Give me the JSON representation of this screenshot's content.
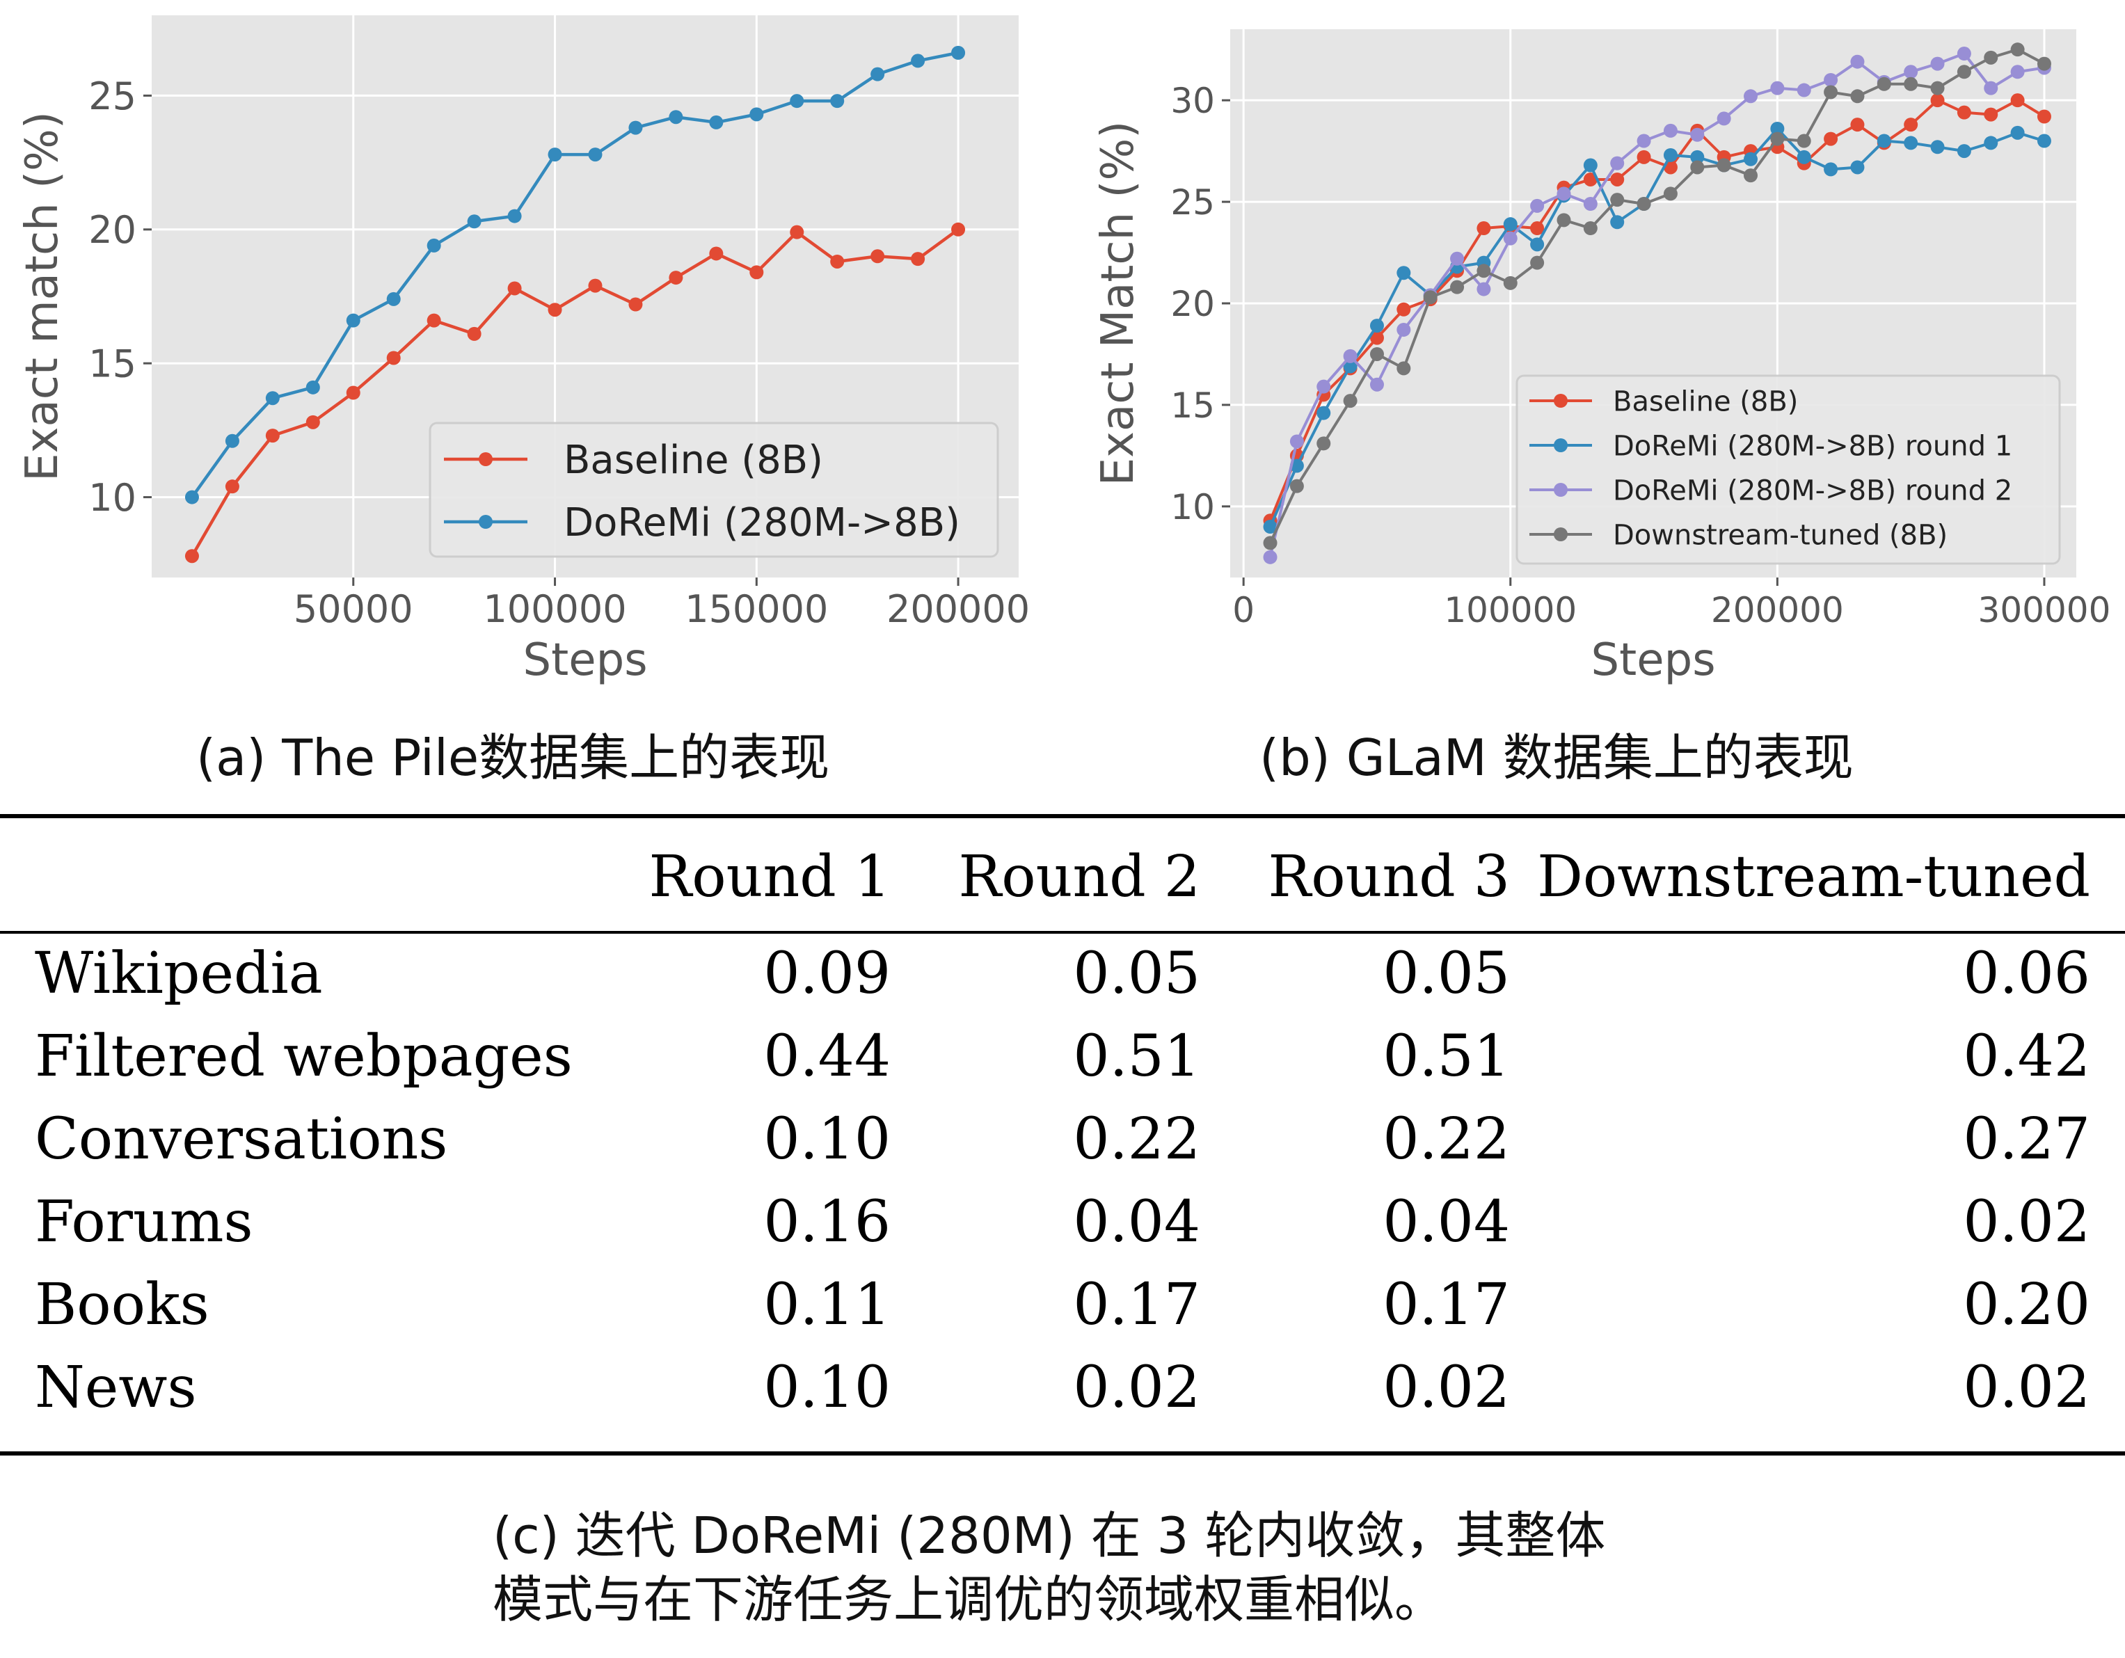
{
  "chart_data": [
    {
      "type": "line",
      "title": "",
      "xlabel": "Steps",
      "ylabel": "Exact match (%)",
      "xlim": [
        0,
        215000
      ],
      "ylim": [
        7,
        28
      ],
      "xticks": [
        50000,
        100000,
        150000,
        200000
      ],
      "yticks": [
        10,
        15,
        20,
        25
      ],
      "grid": true,
      "legend_position": "lower-right",
      "series": [
        {
          "name": "Baseline (8B)",
          "color": "#e24a33",
          "x": [
            10000,
            20000,
            30000,
            40000,
            50000,
            60000,
            70000,
            80000,
            90000,
            100000,
            110000,
            120000,
            130000,
            140000,
            150000,
            160000,
            170000,
            180000,
            190000,
            200000
          ],
          "y": [
            7.8,
            10.4,
            12.3,
            12.8,
            13.9,
            15.2,
            16.6,
            16.1,
            17.8,
            17.0,
            17.9,
            17.2,
            18.2,
            19.1,
            18.4,
            19.9,
            18.8,
            19.0,
            18.9,
            20.0
          ]
        },
        {
          "name": "DoReMi (280M->8B)",
          "color": "#348abd",
          "x": [
            10000,
            20000,
            30000,
            40000,
            50000,
            60000,
            70000,
            80000,
            90000,
            100000,
            110000,
            120000,
            130000,
            140000,
            150000,
            160000,
            170000,
            180000,
            190000,
            200000
          ],
          "y": [
            10.0,
            12.1,
            13.7,
            14.1,
            16.6,
            17.4,
            19.4,
            20.3,
            20.5,
            22.8,
            22.8,
            23.8,
            24.2,
            24.0,
            24.3,
            24.8,
            24.8,
            25.8,
            26.3,
            26.6
          ]
        }
      ]
    },
    {
      "type": "line",
      "title": "",
      "xlabel": "Steps",
      "ylabel": "Exact Match (%)",
      "xlim": [
        -5000,
        312000
      ],
      "ylim": [
        6.5,
        33.5
      ],
      "xticks": [
        0,
        100000,
        200000,
        300000
      ],
      "yticks": [
        10,
        15,
        20,
        25,
        30
      ],
      "grid": true,
      "legend_position": "lower-right",
      "series": [
        {
          "name": "Baseline (8B)",
          "color": "#e24a33",
          "x": [
            10000,
            20000,
            30000,
            40000,
            50000,
            60000,
            70000,
            80000,
            90000,
            100000,
            110000,
            120000,
            130000,
            140000,
            150000,
            160000,
            170000,
            180000,
            190000,
            200000,
            210000,
            220000,
            230000,
            240000,
            250000,
            260000,
            270000,
            280000,
            290000,
            300000
          ],
          "y": [
            9.3,
            12.5,
            15.5,
            16.8,
            18.3,
            19.7,
            20.2,
            21.6,
            23.7,
            23.8,
            23.7,
            25.7,
            26.1,
            26.1,
            27.2,
            26.7,
            28.5,
            27.2,
            27.5,
            27.7,
            26.9,
            28.1,
            28.8,
            27.9,
            28.8,
            30.0,
            29.4,
            29.3,
            30.0,
            29.2
          ]
        },
        {
          "name": "DoReMi (280M->8B) round 1",
          "color": "#348abd",
          "x": [
            10000,
            20000,
            30000,
            40000,
            50000,
            60000,
            70000,
            80000,
            90000,
            100000,
            110000,
            120000,
            130000,
            140000,
            150000,
            160000,
            170000,
            180000,
            190000,
            200000,
            210000,
            220000,
            230000,
            240000,
            250000,
            260000,
            270000,
            280000,
            290000,
            300000
          ],
          "y": [
            9.0,
            12.0,
            14.6,
            16.9,
            18.9,
            21.5,
            20.4,
            21.8,
            22.0,
            23.9,
            22.9,
            25.3,
            26.8,
            24.0,
            24.9,
            27.3,
            27.2,
            26.8,
            27.1,
            28.6,
            27.2,
            26.6,
            26.7,
            28.0,
            27.9,
            27.7,
            27.5,
            27.9,
            28.4,
            28.0
          ]
        },
        {
          "name": "DoReMi (280M->8B) round 2",
          "color": "#988ed5",
          "x": [
            10000,
            20000,
            30000,
            40000,
            50000,
            60000,
            70000,
            80000,
            90000,
            100000,
            110000,
            120000,
            130000,
            140000,
            150000,
            160000,
            170000,
            180000,
            190000,
            200000,
            210000,
            220000,
            230000,
            240000,
            250000,
            260000,
            270000,
            280000,
            290000,
            300000
          ],
          "y": [
            7.5,
            13.2,
            15.9,
            17.4,
            16.0,
            18.7,
            20.4,
            22.2,
            20.7,
            23.2,
            24.8,
            25.4,
            24.9,
            26.9,
            28.0,
            28.5,
            28.3,
            29.1,
            30.2,
            30.6,
            30.5,
            31.0,
            31.9,
            30.9,
            31.4,
            31.8,
            32.3,
            30.6,
            31.4,
            31.6
          ]
        },
        {
          "name": "Downstream-tuned (8B)",
          "color": "#777777",
          "x": [
            10000,
            20000,
            30000,
            40000,
            50000,
            60000,
            70000,
            80000,
            90000,
            100000,
            110000,
            120000,
            130000,
            140000,
            150000,
            160000,
            170000,
            180000,
            190000,
            200000,
            210000,
            220000,
            230000,
            240000,
            250000,
            260000,
            270000,
            280000,
            290000,
            300000
          ],
          "y": [
            8.2,
            11.0,
            13.1,
            15.2,
            17.5,
            16.8,
            20.3,
            20.8,
            21.6,
            21.0,
            22.0,
            24.1,
            23.7,
            25.1,
            24.9,
            25.4,
            26.7,
            26.8,
            26.3,
            28.1,
            28.0,
            30.4,
            30.2,
            30.8,
            30.8,
            30.6,
            31.4,
            32.1,
            32.5,
            31.8
          ]
        }
      ]
    }
  ],
  "captions": {
    "a": "(a) The Pile数据集上的表现",
    "b": "(b) GLaM 数据集上的表现",
    "c_line1": "(c) 迭代 DoReMi (280M) 在 3 轮内收敛，其整体",
    "c_line2": "模式与在下游任务上调优的领域权重相似。"
  },
  "table": {
    "headers": [
      "",
      "Round 1",
      "Round 2",
      "Round 3",
      "Downstream-tuned"
    ],
    "rows": [
      {
        "label": "Wikipedia",
        "values": [
          "0.09",
          "0.05",
          "0.05",
          "0.06"
        ]
      },
      {
        "label": "Filtered webpages",
        "values": [
          "0.44",
          "0.51",
          "0.51",
          "0.42"
        ]
      },
      {
        "label": "Conversations",
        "values": [
          "0.10",
          "0.22",
          "0.22",
          "0.27"
        ]
      },
      {
        "label": "Forums",
        "values": [
          "0.16",
          "0.04",
          "0.04",
          "0.02"
        ]
      },
      {
        "label": "Books",
        "values": [
          "0.11",
          "0.17",
          "0.17",
          "0.20"
        ]
      },
      {
        "label": "News",
        "values": [
          "0.10",
          "0.02",
          "0.02",
          "0.02"
        ]
      }
    ]
  }
}
